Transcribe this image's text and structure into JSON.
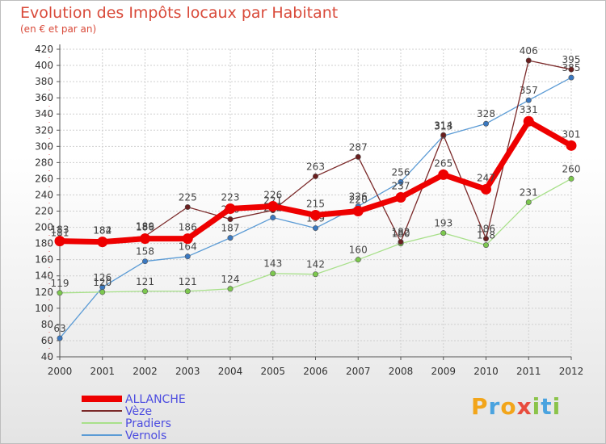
{
  "chart_data": {
    "type": "line",
    "title": "Evolution des Impôts locaux par Habitant",
    "subtitle": "(en € et par an)",
    "x": [
      "2000",
      "2001",
      "2002",
      "2003",
      "2004",
      "2005",
      "2006",
      "2007",
      "2008",
      "2009",
      "2010",
      "2011",
      "2012"
    ],
    "ylim": [
      40,
      420
    ],
    "yticks": [
      40,
      60,
      80,
      100,
      120,
      140,
      160,
      180,
      200,
      220,
      240,
      260,
      280,
      300,
      320,
      340,
      360,
      380,
      400,
      420
    ],
    "grid": true,
    "legend_position": "bottom-left",
    "series": [
      {
        "name": "Vernols",
        "color": "#5b9bd5",
        "marker": "#3a78c0",
        "width": 1.3,
        "values": [
          63,
          126,
          158,
          164,
          187,
          212,
          199,
          226,
          256,
          313,
          328,
          357,
          385
        ]
      },
      {
        "name": "Pradiers",
        "color": "#a8e08a",
        "marker": "#7cc84e",
        "width": 1.3,
        "values": [
          119,
          120,
          121,
          121,
          124,
          143,
          142,
          160,
          180,
          193,
          178,
          231,
          260
        ]
      },
      {
        "name": "Vèze",
        "color": "#7b2a2a",
        "marker": "#6a1f1f",
        "width": 1.3,
        "values": [
          181,
          184,
          189,
          225,
          210,
          221,
          263,
          287,
          182,
          314,
          186,
          406,
          395
        ]
      },
      {
        "name": "ALLANCHE",
        "color": "#ee0000",
        "marker": "#ee0000",
        "width": 7,
        "values": [
          183,
          182,
          186,
          186,
          223,
          226,
          215,
          220,
          237,
          265,
          247,
          331,
          301
        ]
      }
    ]
  },
  "branding": {
    "logo_letters": [
      "P",
      "r",
      "o",
      "x",
      "i",
      "t",
      "i"
    ]
  },
  "colors": {
    "title": "#d94a3a",
    "legend_text": "#4b4be0"
  }
}
